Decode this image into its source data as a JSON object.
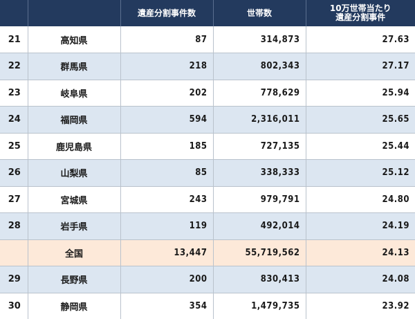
{
  "table": {
    "headers": {
      "rank": "",
      "prefecture": "",
      "cases": "遺産分割事件数",
      "households": "世帯数",
      "rate_line1": "10万世帯当たり",
      "rate_line2": "遺産分割事件"
    },
    "colors": {
      "header_bg": "#233a5e",
      "row_alt_bg": "#dce6f1",
      "national_bg": "#fde9d9"
    },
    "rows": [
      {
        "rank": "21",
        "prefecture": "高知県",
        "cases": "87",
        "households": "314,873",
        "rate": "27.63"
      },
      {
        "rank": "22",
        "prefecture": "群馬県",
        "cases": "218",
        "households": "802,343",
        "rate": "27.17"
      },
      {
        "rank": "23",
        "prefecture": "岐阜県",
        "cases": "202",
        "households": "778,629",
        "rate": "25.94"
      },
      {
        "rank": "24",
        "prefecture": "福岡県",
        "cases": "594",
        "households": "2,316,011",
        "rate": "25.65"
      },
      {
        "rank": "25",
        "prefecture": "鹿児島県",
        "cases": "185",
        "households": "727,135",
        "rate": "25.44"
      },
      {
        "rank": "26",
        "prefecture": "山梨県",
        "cases": "85",
        "households": "338,333",
        "rate": "25.12"
      },
      {
        "rank": "27",
        "prefecture": "宮城県",
        "cases": "243",
        "households": "979,791",
        "rate": "24.80"
      },
      {
        "rank": "28",
        "prefecture": "岩手県",
        "cases": "119",
        "households": "492,014",
        "rate": "24.19"
      },
      {
        "rank": "",
        "prefecture": "全国",
        "cases": "13,447",
        "households": "55,719,562",
        "rate": "24.13"
      },
      {
        "rank": "29",
        "prefecture": "長野県",
        "cases": "200",
        "households": "830,413",
        "rate": "24.08"
      },
      {
        "rank": "30",
        "prefecture": "静岡県",
        "cases": "354",
        "households": "1,479,735",
        "rate": "23.92"
      }
    ]
  }
}
